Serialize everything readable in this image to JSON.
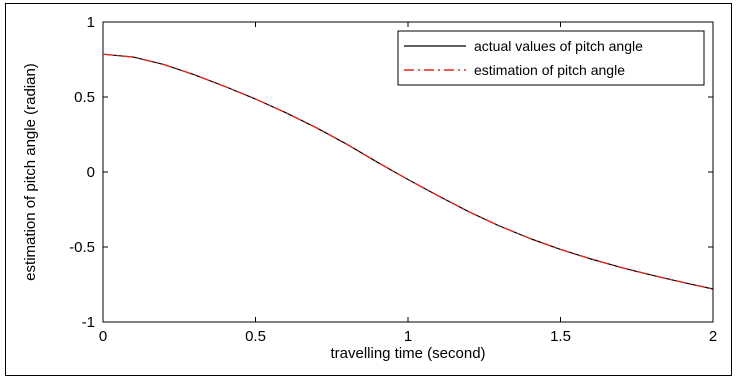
{
  "chart_data": {
    "type": "line",
    "xlabel": "travelling time (second)",
    "ylabel": "estimation of pitch angle (radian)",
    "xlim": [
      0,
      2
    ],
    "ylim": [
      -1,
      1
    ],
    "xticks": [
      0,
      0.5,
      1,
      1.5,
      2
    ],
    "xtick_labels": [
      "0",
      "0.5",
      "1",
      "1.5",
      "2"
    ],
    "yticks": [
      1,
      0.5,
      0,
      -0.5,
      -1
    ],
    "ytick_labels": [
      "1",
      "0.5",
      "0",
      "-0.5",
      "-1"
    ],
    "grid": false,
    "legend_position": "top-right",
    "series": [
      {
        "name": "actual values of pitch angle",
        "color": "#000000",
        "line_style": "solid",
        "x": [
          0,
          0.1,
          0.2,
          0.3,
          0.4,
          0.5,
          0.6,
          0.7,
          0.8,
          0.9,
          1.0,
          1.1,
          1.2,
          1.3,
          1.4,
          1.5,
          1.6,
          1.7,
          1.8,
          1.9,
          2.0
        ],
        "y": [
          0.785,
          0.766,
          0.716,
          0.648,
          0.57,
          0.487,
          0.395,
          0.295,
          0.185,
          0.065,
          -0.05,
          -0.16,
          -0.265,
          -0.36,
          -0.443,
          -0.516,
          -0.58,
          -0.637,
          -0.688,
          -0.735,
          -0.78
        ]
      },
      {
        "name": "estimation of pitch angle",
        "color": "#e8241c",
        "line_style": "dash-dot",
        "x": [
          0,
          0.1,
          0.2,
          0.3,
          0.4,
          0.5,
          0.6,
          0.7,
          0.8,
          0.9,
          1.0,
          1.1,
          1.2,
          1.3,
          1.4,
          1.5,
          1.6,
          1.7,
          1.8,
          1.9,
          2.0
        ],
        "y": [
          0.785,
          0.766,
          0.716,
          0.648,
          0.57,
          0.487,
          0.395,
          0.295,
          0.185,
          0.065,
          -0.05,
          -0.16,
          -0.265,
          -0.36,
          -0.443,
          -0.516,
          -0.58,
          -0.637,
          -0.688,
          -0.735,
          -0.78
        ]
      }
    ]
  }
}
